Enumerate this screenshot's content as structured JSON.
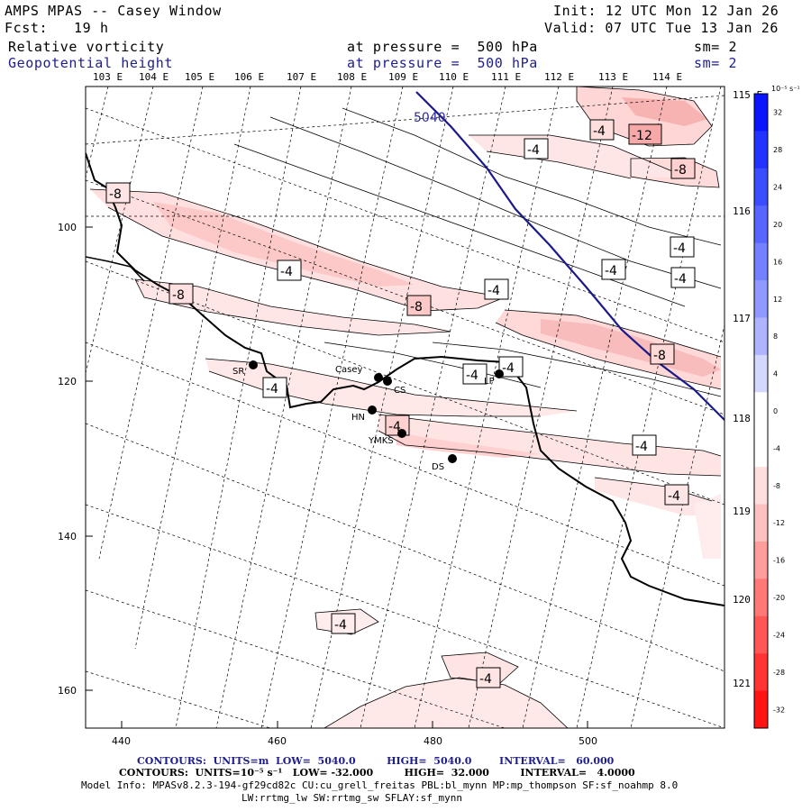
{
  "header": {
    "title": "AMPS MPAS -- Casey Window",
    "init": "Init: 12 UTC Mon 12 Jan 26",
    "fcst": "Fcst:   19 h",
    "valid": "Valid: 07 UTC Tue 13 Jan 26",
    "field1": {
      "name": "Relative vorticity",
      "level": "at pressure =  500 hPa",
      "sm": "sm= 2"
    },
    "field2": {
      "name": "Geopotential height",
      "level": "at pressure =  500 hPa",
      "sm": "sm= 2"
    }
  },
  "map": {
    "lon_labels_top": [
      "103 E",
      "104 E",
      "105 E",
      "106 E",
      "107 E",
      "108 E",
      "109 E",
      "110 E",
      "111 E",
      "112 E",
      "113 E",
      "114 E"
    ],
    "lat_labels_right": [
      "115 E",
      "116 E",
      "117 E",
      "118 E",
      "119 E",
      "120 E",
      "121 E"
    ],
    "x_axis": [
      "440",
      "460",
      "480",
      "500"
    ],
    "y_axis": [
      "100",
      "120",
      "140",
      "160"
    ],
    "height_contour_label": "5040",
    "vorticity_labels": [
      "-4",
      "-12",
      "-8",
      "-8",
      "-4",
      "-4",
      "-4",
      "-4",
      "-8",
      "-8",
      "-4",
      "-4",
      "-4",
      "-8",
      "-4",
      "-4",
      "-4",
      "-4",
      "-4",
      "-4"
    ],
    "stations": [
      {
        "name": "SR"
      },
      {
        "name": "Casey"
      },
      {
        "name": "CS"
      },
      {
        "name": "LP"
      },
      {
        "name": "HN"
      },
      {
        "name": "YMKS"
      },
      {
        "name": "DS"
      }
    ]
  },
  "colorbar": {
    "unit": "10⁻⁵ s⁻¹",
    "ticks": [
      "32",
      "28",
      "24",
      "20",
      "16",
      "12",
      "8",
      "4",
      "0",
      "-4",
      "-8",
      "-12",
      "-16",
      "-20",
      "-24",
      "-28",
      "-32"
    ],
    "colors": [
      "#0a14ff",
      "#2233ff",
      "#3c4cff",
      "#5666ff",
      "#7380ff",
      "#9099ff",
      "#aeb4ff",
      "#d4d8ff",
      "#ffffff",
      "#ffffff",
      "#ffdede",
      "#ffc0c0",
      "#ff9c9c",
      "#ff7878",
      "#ff5656",
      "#ff3434",
      "#ff1414"
    ]
  },
  "footer": {
    "line1": "CONTOURS:  UNITS=m  LOW=  5040.0         HIGH=  5040.0        INTERVAL=   60.000",
    "line2": "CONTOURS:  UNITS=10⁻⁵ s⁻¹   LOW= -32.000         HIGH=  32.000         INTERVAL=   4.0000",
    "line3": "Model Info: MPASv8.2.3-194-gf29cd82c CU:cu_grell_freitas PBL:bl_mynn MP:mp_thompson SF:sf_noahmp 8.0",
    "line4": "LW:rrtmg_lw SW:rrtmg_sw SFLAY:sf_mynn"
  }
}
